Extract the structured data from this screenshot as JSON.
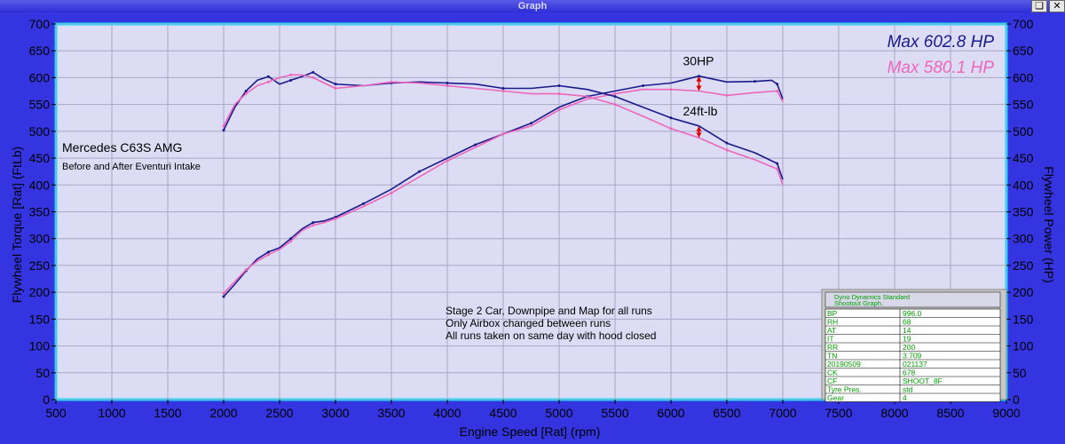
{
  "window": {
    "title": "Graph",
    "restore_icon": "restore-icon",
    "close_icon": "close-icon"
  },
  "chart_data": {
    "type": "line",
    "xlabel": "Engine Speed [Rat] (rpm)",
    "ylabel_left": "Flywheel Torque [Rat] (FtLb)",
    "ylabel_right": "Flywheel Power (HP)",
    "xlim": [
      500,
      9000
    ],
    "ylim": [
      0,
      700
    ],
    "xticks": [
      "500",
      "1000",
      "1500",
      "2000",
      "2500",
      "3000",
      "3500",
      "4000",
      "4500",
      "5000",
      "5500",
      "6000",
      "6500",
      "7000",
      "7500",
      "8000",
      "8500",
      "9000"
    ],
    "yticks": [
      "0",
      "50",
      "100",
      "150",
      "200",
      "250",
      "300",
      "350",
      "400",
      "450",
      "500",
      "550",
      "600",
      "650",
      "700"
    ],
    "grid": true,
    "colors": {
      "plot_bg": "#dcdcf4",
      "frame": "#00e0ff",
      "before": "#ee66bb",
      "after": "#1a1a8c",
      "arrow": "#e00000",
      "grid": "#a8a8c8"
    },
    "series": [
      {
        "name": "",
        "measure": "power",
        "color": "#1a1a8c",
        "points": [
          [
            2000,
            192
          ],
          [
            2100,
            215
          ],
          [
            2200,
            240
          ],
          [
            2300,
            262
          ],
          [
            2400,
            275
          ],
          [
            2500,
            283
          ],
          [
            2600,
            300
          ],
          [
            2700,
            318
          ],
          [
            2800,
            330
          ],
          [
            2900,
            333
          ],
          [
            3000,
            340
          ],
          [
            3100,
            350
          ],
          [
            3250,
            365
          ],
          [
            3500,
            392
          ],
          [
            3750,
            425
          ],
          [
            4000,
            450
          ],
          [
            4250,
            475
          ],
          [
            4500,
            495
          ],
          [
            4750,
            515
          ],
          [
            5000,
            545
          ],
          [
            5250,
            565
          ],
          [
            5500,
            575
          ],
          [
            5750,
            585
          ],
          [
            6000,
            590
          ],
          [
            6250,
            602.8
          ],
          [
            6500,
            592
          ],
          [
            6750,
            593
          ],
          [
            6900,
            595
          ],
          [
            6950,
            588
          ],
          [
            7000,
            560
          ]
        ]
      },
      {
        "name": "",
        "measure": "power",
        "color": "#ee66bb",
        "points": [
          [
            2000,
            198
          ],
          [
            2100,
            220
          ],
          [
            2200,
            242
          ],
          [
            2300,
            258
          ],
          [
            2400,
            270
          ],
          [
            2500,
            280
          ],
          [
            2600,
            295
          ],
          [
            2700,
            315
          ],
          [
            2800,
            325
          ],
          [
            2900,
            330
          ],
          [
            3000,
            337
          ],
          [
            3250,
            360
          ],
          [
            3500,
            385
          ],
          [
            3750,
            415
          ],
          [
            4000,
            445
          ],
          [
            4250,
            470
          ],
          [
            4500,
            495
          ],
          [
            4750,
            510
          ],
          [
            5000,
            540
          ],
          [
            5250,
            560
          ],
          [
            5500,
            570
          ],
          [
            5750,
            578
          ],
          [
            6000,
            578
          ],
          [
            6250,
            575
          ],
          [
            6500,
            567
          ],
          [
            6750,
            572
          ],
          [
            6950,
            575
          ],
          [
            7000,
            555
          ]
        ]
      },
      {
        "name": "",
        "measure": "torque",
        "color": "#1a1a8c",
        "points": [
          [
            2000,
            502
          ],
          [
            2100,
            545
          ],
          [
            2200,
            575
          ],
          [
            2300,
            595
          ],
          [
            2400,
            602
          ],
          [
            2500,
            588
          ],
          [
            2600,
            595
          ],
          [
            2700,
            602
          ],
          [
            2800,
            610
          ],
          [
            2900,
            597
          ],
          [
            3000,
            588
          ],
          [
            3250,
            585
          ],
          [
            3500,
            590
          ],
          [
            3750,
            592
          ],
          [
            4000,
            590
          ],
          [
            4250,
            588
          ],
          [
            4500,
            580
          ],
          [
            4750,
            580
          ],
          [
            5000,
            585
          ],
          [
            5250,
            578
          ],
          [
            5500,
            565
          ],
          [
            5750,
            545
          ],
          [
            6000,
            525
          ],
          [
            6250,
            510
          ],
          [
            6500,
            478
          ],
          [
            6750,
            460
          ],
          [
            6950,
            440
          ],
          [
            7000,
            410
          ]
        ]
      },
      {
        "name": "",
        "measure": "torque",
        "color": "#ee66bb",
        "points": [
          [
            2000,
            510
          ],
          [
            2100,
            550
          ],
          [
            2200,
            570
          ],
          [
            2300,
            585
          ],
          [
            2400,
            592
          ],
          [
            2500,
            600
          ],
          [
            2600,
            605
          ],
          [
            2700,
            605
          ],
          [
            2800,
            600
          ],
          [
            2900,
            590
          ],
          [
            3000,
            580
          ],
          [
            3250,
            585
          ],
          [
            3500,
            592
          ],
          [
            3750,
            590
          ],
          [
            4000,
            585
          ],
          [
            4250,
            580
          ],
          [
            4500,
            575
          ],
          [
            4750,
            570
          ],
          [
            5000,
            570
          ],
          [
            5250,
            565
          ],
          [
            5500,
            550
          ],
          [
            5750,
            528
          ],
          [
            6000,
            505
          ],
          [
            6250,
            488
          ],
          [
            6500,
            465
          ],
          [
            6750,
            447
          ],
          [
            6950,
            430
          ],
          [
            7000,
            400
          ]
        ]
      }
    ],
    "legend": {
      "position": "top-right",
      "after_label": "Max 602.8 HP",
      "before_label": "Max 580.1 HP"
    },
    "annotations": {
      "hp_gain": "30HP",
      "tq_gain": "24ft-lb",
      "car": "Mercedes C63S AMG",
      "subtitle": "Before and After Eventuri Intake",
      "note1": "Stage 2 Car, Downpipe and Map for all runs",
      "note2": "Only Airbox changed between runs",
      "note3": "All runs taken on same day with hood closed"
    },
    "info_table": {
      "header1": "Dyno Dynamics Standard",
      "header2": "Shootout Graph.",
      "rows": [
        [
          "BP",
          "996.0"
        ],
        [
          "RH",
          "68"
        ],
        [
          "AT",
          "14"
        ],
        [
          "IT",
          "19"
        ],
        [
          "RR",
          "200"
        ],
        [
          "TN",
          "3.709"
        ],
        [
          "20190509",
          "021137"
        ],
        [
          "CK",
          "678"
        ],
        [
          "CF",
          "SHOOT_8F"
        ],
        [
          "Tyre Pres.",
          "std"
        ],
        [
          "Gear",
          "4"
        ]
      ]
    }
  }
}
